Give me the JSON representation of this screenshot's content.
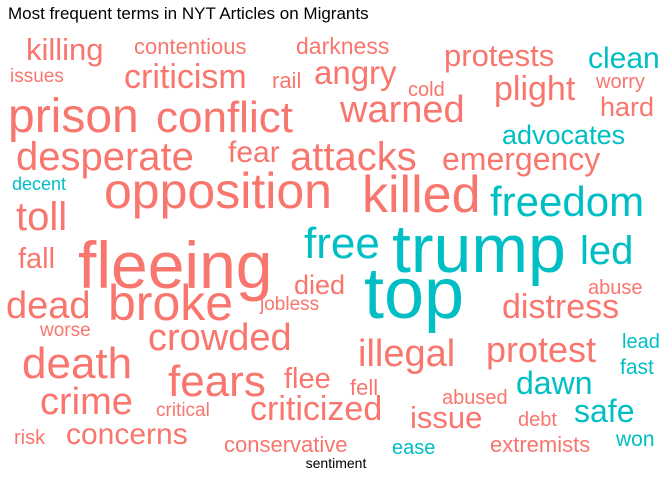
{
  "chart_data": {
    "type": "wordcloud",
    "title": "Most frequent terms in NYT Articles on Migrants",
    "xlabel": "sentiment",
    "colors": {
      "negative": "#F8766D",
      "positive": "#00BFC4"
    },
    "words": [
      {
        "text": "top",
        "sentiment": "positive",
        "size": 72
      },
      {
        "text": "trump",
        "sentiment": "positive",
        "size": 68
      },
      {
        "text": "fleeing",
        "sentiment": "negative",
        "size": 66
      },
      {
        "text": "killed",
        "sentiment": "negative",
        "size": 52
      },
      {
        "text": "opposition",
        "sentiment": "negative",
        "size": 50
      },
      {
        "text": "broke",
        "sentiment": "negative",
        "size": 50
      },
      {
        "text": "prison",
        "sentiment": "negative",
        "size": 48
      },
      {
        "text": "conflict",
        "sentiment": "negative",
        "size": 44
      },
      {
        "text": "fears",
        "sentiment": "negative",
        "size": 44
      },
      {
        "text": "death",
        "sentiment": "negative",
        "size": 44
      },
      {
        "text": "free",
        "sentiment": "positive",
        "size": 44
      },
      {
        "text": "freedom",
        "sentiment": "positive",
        "size": 42
      },
      {
        "text": "desperate",
        "sentiment": "negative",
        "size": 40
      },
      {
        "text": "attacks",
        "sentiment": "negative",
        "size": 40
      },
      {
        "text": "toll",
        "sentiment": "negative",
        "size": 40
      },
      {
        "text": "led",
        "sentiment": "positive",
        "size": 40
      },
      {
        "text": "warned",
        "sentiment": "negative",
        "size": 38
      },
      {
        "text": "illegal",
        "sentiment": "negative",
        "size": 38
      },
      {
        "text": "dead",
        "sentiment": "negative",
        "size": 38
      },
      {
        "text": "crowded",
        "sentiment": "negative",
        "size": 38
      },
      {
        "text": "crime",
        "sentiment": "negative",
        "size": 38
      },
      {
        "text": "protest",
        "sentiment": "negative",
        "size": 36
      },
      {
        "text": "criticism",
        "sentiment": "negative",
        "size": 34
      },
      {
        "text": "distress",
        "sentiment": "negative",
        "size": 34
      },
      {
        "text": "criticized",
        "sentiment": "negative",
        "size": 34
      },
      {
        "text": "plight",
        "sentiment": "negative",
        "size": 34
      },
      {
        "text": "angry",
        "sentiment": "negative",
        "size": 33
      },
      {
        "text": "emergency",
        "sentiment": "negative",
        "size": 32
      },
      {
        "text": "safe",
        "sentiment": "positive",
        "size": 32
      },
      {
        "text": "dawn",
        "sentiment": "positive",
        "size": 32
      },
      {
        "text": "killing",
        "sentiment": "negative",
        "size": 31
      },
      {
        "text": "issue",
        "sentiment": "negative",
        "size": 31
      },
      {
        "text": "protests",
        "sentiment": "negative",
        "size": 31
      },
      {
        "text": "concerns",
        "sentiment": "negative",
        "size": 30
      },
      {
        "text": "fear",
        "sentiment": "negative",
        "size": 30
      },
      {
        "text": "clean",
        "sentiment": "positive",
        "size": 30
      },
      {
        "text": "fall",
        "sentiment": "negative",
        "size": 29
      },
      {
        "text": "flee",
        "sentiment": "negative",
        "size": 29
      },
      {
        "text": "advocates",
        "sentiment": "positive",
        "size": 27
      },
      {
        "text": "hard",
        "sentiment": "negative",
        "size": 27
      },
      {
        "text": "died",
        "sentiment": "negative",
        "size": 27
      },
      {
        "text": "darkness",
        "sentiment": "negative",
        "size": 23
      },
      {
        "text": "contentious",
        "sentiment": "negative",
        "size": 22
      },
      {
        "text": "conservative",
        "sentiment": "negative",
        "size": 22
      },
      {
        "text": "extremists",
        "sentiment": "negative",
        "size": 22
      },
      {
        "text": "rail",
        "sentiment": "negative",
        "size": 22
      },
      {
        "text": "fell",
        "sentiment": "negative",
        "size": 22
      },
      {
        "text": "worry",
        "sentiment": "negative",
        "size": 20
      },
      {
        "text": "cold",
        "sentiment": "negative",
        "size": 20
      },
      {
        "text": "abused",
        "sentiment": "negative",
        "size": 20
      },
      {
        "text": "abuse",
        "sentiment": "negative",
        "size": 20
      },
      {
        "text": "debt",
        "sentiment": "negative",
        "size": 20
      },
      {
        "text": "risk",
        "sentiment": "negative",
        "size": 20
      },
      {
        "text": "worse",
        "sentiment": "negative",
        "size": 19
      },
      {
        "text": "jobless",
        "sentiment": "negative",
        "size": 19
      },
      {
        "text": "critical",
        "sentiment": "negative",
        "size": 19
      },
      {
        "text": "issues",
        "sentiment": "negative",
        "size": 19
      },
      {
        "text": "won",
        "sentiment": "positive",
        "size": 21
      },
      {
        "text": "fast",
        "sentiment": "positive",
        "size": 21
      },
      {
        "text": "lead",
        "sentiment": "positive",
        "size": 20
      },
      {
        "text": "ease",
        "sentiment": "positive",
        "size": 20
      },
      {
        "text": "decent",
        "sentiment": "positive",
        "size": 18
      }
    ]
  }
}
